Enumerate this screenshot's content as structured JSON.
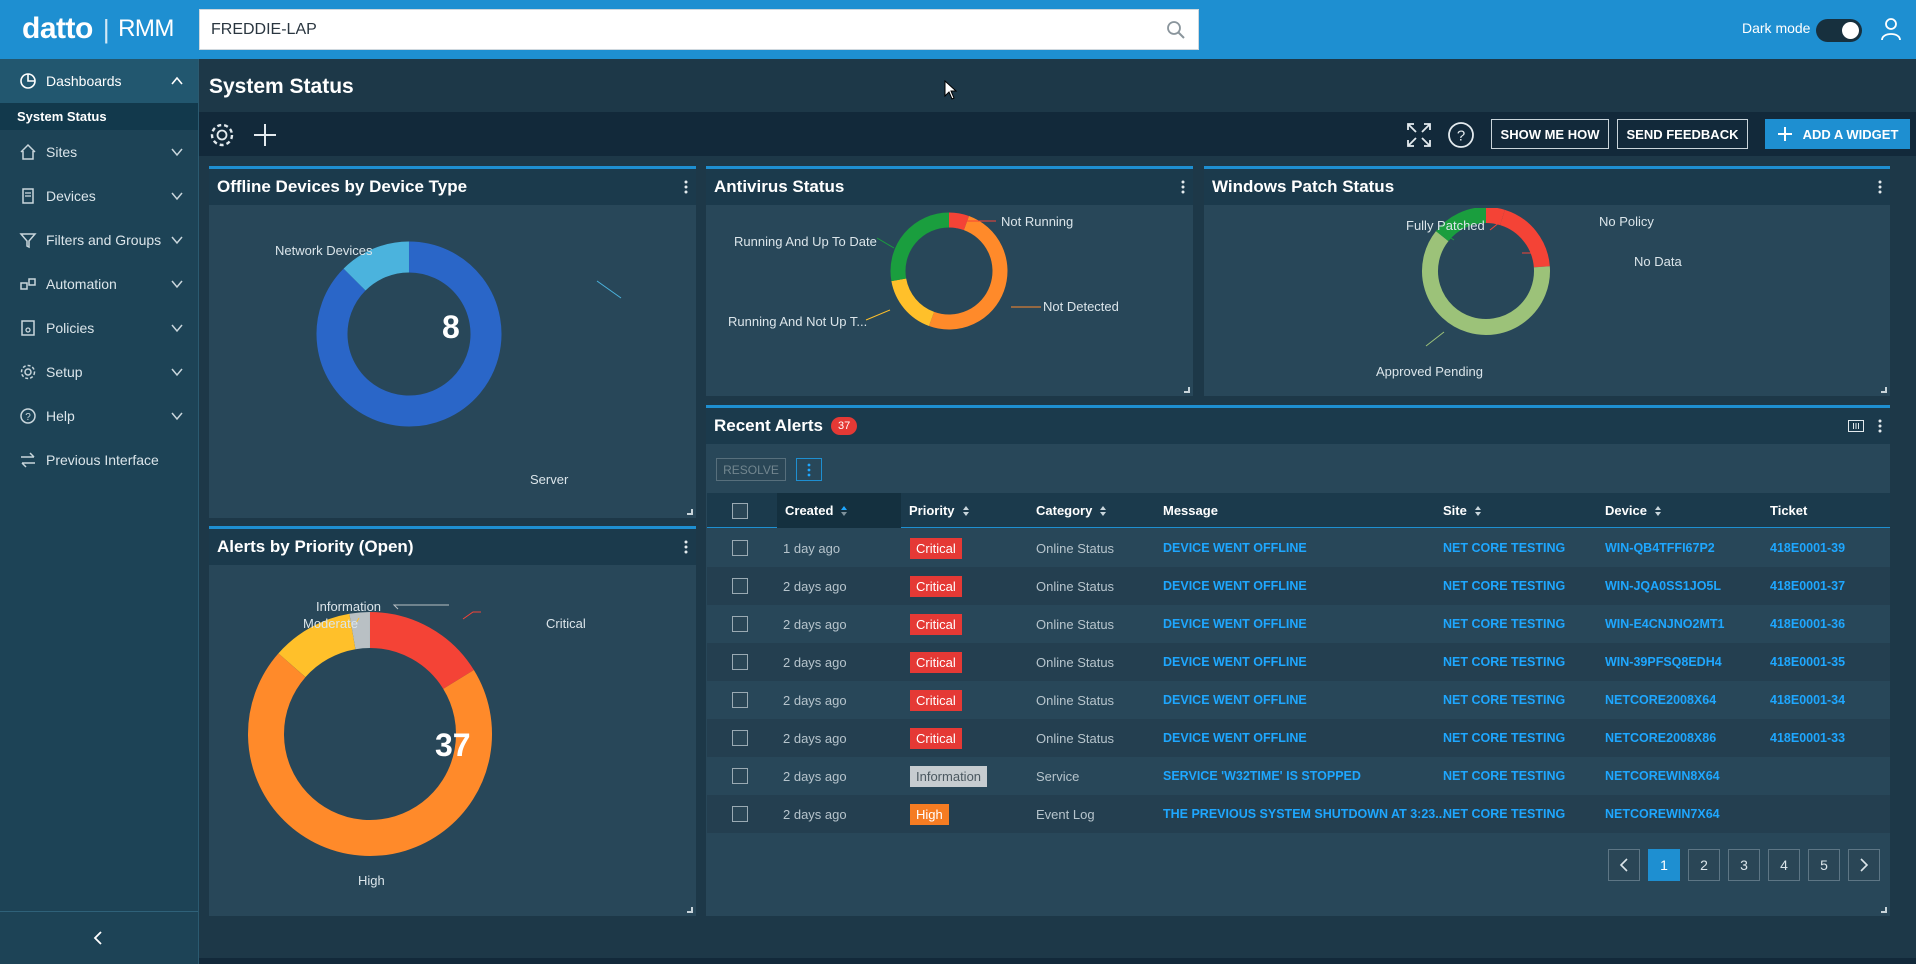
{
  "app": {
    "logo_brand": "datto",
    "logo_sep": "|",
    "logo_product": "RMM",
    "search_value": "FREDDIE-LAP",
    "dark_mode_label": "Dark mode"
  },
  "sidebar": {
    "head": "Dashboards",
    "active_sub": "System Status",
    "items": [
      {
        "label": "Sites",
        "icon": "home-icon"
      },
      {
        "label": "Devices",
        "icon": "device-icon"
      },
      {
        "label": "Filters and Groups",
        "icon": "filter-icon"
      },
      {
        "label": "Automation",
        "icon": "automation-icon"
      },
      {
        "label": "Policies",
        "icon": "policies-icon"
      },
      {
        "label": "Setup",
        "icon": "gear-icon"
      },
      {
        "label": "Help",
        "icon": "help-icon"
      },
      {
        "label": "Previous Interface",
        "icon": "switch-icon"
      }
    ]
  },
  "page": {
    "title": "System Status",
    "show_me_how": "SHOW ME HOW",
    "send_feedback": "SEND FEEDBACK",
    "add_widget": "ADD A WIDGET"
  },
  "widgets": {
    "offline": {
      "title": "Offline Devices by Device Type",
      "center": "8",
      "labels": {
        "network": "Network Devices",
        "server": "Server"
      }
    },
    "antivirus": {
      "title": "Antivirus Status",
      "labels": {
        "not_running": "Not Running",
        "running_up_to_date": "Running And Up To Date",
        "not_detected": "Not Detected",
        "running_not_up": "Running And Not Up T..."
      }
    },
    "patch": {
      "title": "Windows Patch Status",
      "labels": {
        "fully_patched": "Fully Patched",
        "no_policy": "No Policy",
        "no_data": "No Data",
        "approved_pending": "Approved Pending"
      }
    },
    "alerts_priority": {
      "title": "Alerts by Priority (Open)",
      "center": "37",
      "labels": {
        "information": "Information",
        "moderate": "Moderate",
        "critical": "Critical",
        "high": "High"
      }
    }
  },
  "chart_data": [
    {
      "type": "pie",
      "title": "Offline Devices by Device Type",
      "categories": [
        "Server",
        "Network Devices"
      ],
      "values": [
        7,
        1
      ],
      "colors": [
        "#2a66c8",
        "#4bb3dd"
      ]
    },
    {
      "type": "pie",
      "title": "Antivirus Status",
      "categories": [
        "Not Running",
        "Not Detected",
        "Running And Not Up To Date",
        "Running And Up To Date"
      ],
      "values": [
        1,
        9,
        3,
        5
      ],
      "colors": [
        "#f44336",
        "#ff8a2a",
        "#ffc02a",
        "#1a9e3e"
      ]
    },
    {
      "type": "pie",
      "title": "Windows Patch Status",
      "categories": [
        "No Policy",
        "No Data",
        "Approved Pending",
        "Fully Patched"
      ],
      "values": [
        1,
        4,
        13,
        3
      ],
      "colors": [
        "#f44336",
        "#f44336",
        "#9cc279",
        "#1a9e3e"
      ]
    },
    {
      "type": "pie",
      "title": "Alerts by Priority (Open)",
      "categories": [
        "Critical",
        "High",
        "Moderate",
        "Information"
      ],
      "values": [
        6,
        26,
        4,
        1
      ],
      "colors": [
        "#f44336",
        "#ff8a2a",
        "#ffc02a",
        "#b9c0c4"
      ]
    }
  ],
  "alerts": {
    "title": "Recent Alerts",
    "count": "37",
    "resolve": "RESOLVE",
    "columns": [
      "Created",
      "Priority",
      "Category",
      "Message",
      "Site",
      "Device",
      "Ticket"
    ],
    "rows": [
      {
        "created": "1 day ago",
        "priority": "Critical",
        "category": "Online Status",
        "message": "DEVICE WENT OFFLINE",
        "site": "NET CORE TESTING",
        "device": "WIN-QB4TFFI67P2",
        "ticket": "418E0001-39"
      },
      {
        "created": "2 days ago",
        "priority": "Critical",
        "category": "Online Status",
        "message": "DEVICE WENT OFFLINE",
        "site": "NET CORE TESTING",
        "device": "WIN-JQA0SS1JO5L",
        "ticket": "418E0001-37"
      },
      {
        "created": "2 days ago",
        "priority": "Critical",
        "category": "Online Status",
        "message": "DEVICE WENT OFFLINE",
        "site": "NET CORE TESTING",
        "device": "WIN-E4CNJNO2MT1",
        "ticket": "418E0001-36"
      },
      {
        "created": "2 days ago",
        "priority": "Critical",
        "category": "Online Status",
        "message": "DEVICE WENT OFFLINE",
        "site": "NET CORE TESTING",
        "device": "WIN-39PFSQ8EDH4",
        "ticket": "418E0001-35"
      },
      {
        "created": "2 days ago",
        "priority": "Critical",
        "category": "Online Status",
        "message": "DEVICE WENT OFFLINE",
        "site": "NET CORE TESTING",
        "device": "NETCORE2008X64",
        "ticket": "418E0001-34"
      },
      {
        "created": "2 days ago",
        "priority": "Critical",
        "category": "Online Status",
        "message": "DEVICE WENT OFFLINE",
        "site": "NET CORE TESTING",
        "device": "NETCORE2008X86",
        "ticket": "418E0001-33"
      },
      {
        "created": "2 days ago",
        "priority": "Information",
        "category": "Service",
        "message": "SERVICE 'W32TIME' IS STOPPED",
        "site": "NET CORE TESTING",
        "device": "NETCOREWIN8X64",
        "ticket": ""
      },
      {
        "created": "2 days ago",
        "priority": "High",
        "category": "Event Log",
        "message": "THE PREVIOUS SYSTEM SHUTDOWN AT 3:23...",
        "site": "NET CORE TESTING",
        "device": "NETCOREWIN7X64",
        "ticket": ""
      }
    ],
    "pages": [
      "1",
      "2",
      "3",
      "4",
      "5"
    ],
    "current_page": "1"
  }
}
